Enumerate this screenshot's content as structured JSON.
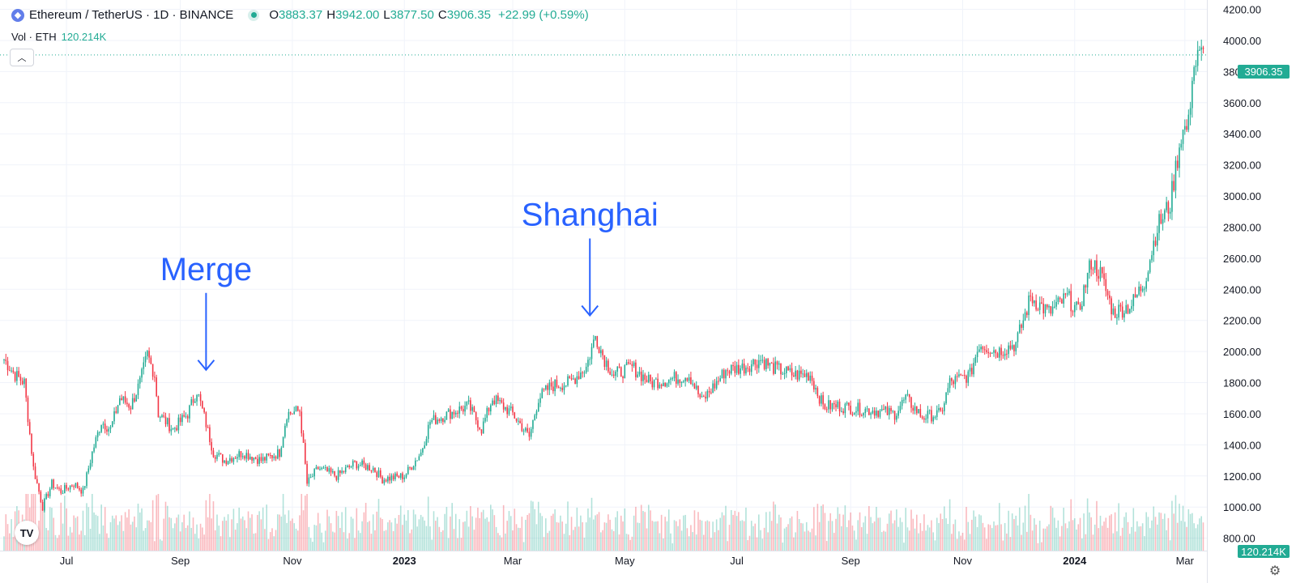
{
  "legend": {
    "symbol": "Ethereum / TetherUS · 1D · BINANCE",
    "o_label": "O",
    "o_value": "3883.37",
    "h_label": "H",
    "h_value": "3942.00",
    "l_label": "L",
    "l_value": "3877.50",
    "c_label": "C",
    "c_value": "3906.35",
    "change": "+22.99 (+0.59%)"
  },
  "volume_legend": {
    "label": "Vol · ETH",
    "value": "120.214K"
  },
  "last_price_tag": "3906.35",
  "volume_tag": "120.214K",
  "colors": {
    "up": "#22ab94",
    "down": "#f23645",
    "annotation": "#2962ff",
    "grid": "#f0f3fa"
  },
  "icons": {
    "collapse": "chevron-up-icon",
    "logo": "tradingview-logo",
    "settings": "gear-icon"
  },
  "chart_data": {
    "type": "candlestick",
    "y_axis_ticks": [
      "800.00",
      "1000.00",
      "1200.00",
      "1400.00",
      "1600.00",
      "1800.00",
      "2000.00",
      "2200.00",
      "2400.00",
      "2600.00",
      "2800.00",
      "3000.00",
      "3200.00",
      "3400.00",
      "3600.00",
      "3800.00",
      "4000.00",
      "4200.00"
    ],
    "ylim": [
      720,
      4260
    ],
    "x_axis_ticks": [
      {
        "label": "Jul",
        "date": "2022-07-01"
      },
      {
        "label": "Sep",
        "date": "2022-09-01"
      },
      {
        "label": "Nov",
        "date": "2022-11-01"
      },
      {
        "label": "2023",
        "date": "2023-01-01",
        "bold": true
      },
      {
        "label": "Mar",
        "date": "2023-03-01"
      },
      {
        "label": "May",
        "date": "2023-05-01"
      },
      {
        "label": "Jul",
        "date": "2023-07-01"
      },
      {
        "label": "Sep",
        "date": "2023-09-01"
      },
      {
        "label": "Nov",
        "date": "2023-11-01"
      },
      {
        "label": "2024",
        "date": "2024-01-01",
        "bold": true
      },
      {
        "label": "Mar",
        "date": "2024-03-01"
      }
    ],
    "xlim": [
      "2022-05-28",
      "2024-03-13"
    ],
    "price_path": [
      [
        "2022-05-28",
        1950
      ],
      [
        "2022-06-03",
        1850
      ],
      [
        "2022-06-08",
        1800
      ],
      [
        "2022-06-13",
        1250
      ],
      [
        "2022-06-18",
        1000
      ],
      [
        "2022-06-23",
        1150
      ],
      [
        "2022-06-28",
        1100
      ],
      [
        "2022-07-05",
        1150
      ],
      [
        "2022-07-10",
        1100
      ],
      [
        "2022-07-15",
        1350
      ],
      [
        "2022-07-20",
        1550
      ],
      [
        "2022-07-25",
        1500
      ],
      [
        "2022-07-30",
        1700
      ],
      [
        "2022-08-05",
        1650
      ],
      [
        "2022-08-10",
        1800
      ],
      [
        "2022-08-14",
        1980
      ],
      [
        "2022-08-18",
        1850
      ],
      [
        "2022-08-20",
        1600
      ],
      [
        "2022-08-28",
        1500
      ],
      [
        "2022-09-05",
        1600
      ],
      [
        "2022-09-10",
        1750
      ],
      [
        "2022-09-14",
        1580
      ],
      [
        "2022-09-19",
        1350
      ],
      [
        "2022-09-25",
        1300
      ],
      [
        "2022-10-05",
        1350
      ],
      [
        "2022-10-15",
        1300
      ],
      [
        "2022-10-25",
        1350
      ],
      [
        "2022-10-29",
        1600
      ],
      [
        "2022-11-05",
        1620
      ],
      [
        "2022-11-09",
        1150
      ],
      [
        "2022-11-15",
        1250
      ],
      [
        "2022-11-25",
        1200
      ],
      [
        "2022-12-05",
        1280
      ],
      [
        "2022-12-15",
        1250
      ],
      [
        "2022-12-20",
        1180
      ],
      [
        "2023-01-01",
        1200
      ],
      [
        "2023-01-10",
        1350
      ],
      [
        "2023-01-15",
        1550
      ],
      [
        "2023-01-25",
        1600
      ],
      [
        "2023-02-05",
        1650
      ],
      [
        "2023-02-12",
        1500
      ],
      [
        "2023-02-18",
        1700
      ],
      [
        "2023-03-01",
        1600
      ],
      [
        "2023-03-10",
        1450
      ],
      [
        "2023-03-15",
        1700
      ],
      [
        "2023-03-22",
        1780
      ],
      [
        "2023-04-01",
        1800
      ],
      [
        "2023-04-10",
        1900
      ],
      [
        "2023-04-15",
        2100
      ],
      [
        "2023-04-20",
        1950
      ],
      [
        "2023-04-25",
        1850
      ],
      [
        "2023-05-05",
        1900
      ],
      [
        "2023-05-15",
        1800
      ],
      [
        "2023-05-25",
        1820
      ],
      [
        "2023-06-05",
        1850
      ],
      [
        "2023-06-12",
        1680
      ],
      [
        "2023-06-20",
        1800
      ],
      [
        "2023-06-25",
        1880
      ],
      [
        "2023-07-05",
        1900
      ],
      [
        "2023-07-14",
        1950
      ],
      [
        "2023-07-20",
        1900
      ],
      [
        "2023-08-01",
        1850
      ],
      [
        "2023-08-10",
        1850
      ],
      [
        "2023-08-17",
        1650
      ],
      [
        "2023-08-25",
        1650
      ],
      [
        "2023-09-05",
        1630
      ],
      [
        "2023-09-15",
        1620
      ],
      [
        "2023-09-25",
        1600
      ],
      [
        "2023-10-01",
        1700
      ],
      [
        "2023-10-10",
        1580
      ],
      [
        "2023-10-20",
        1600
      ],
      [
        "2023-10-25",
        1800
      ],
      [
        "2023-11-05",
        1850
      ],
      [
        "2023-11-10",
        2050
      ],
      [
        "2023-11-20",
        2000
      ],
      [
        "2023-11-30",
        2050
      ],
      [
        "2023-12-08",
        2350
      ],
      [
        "2023-12-18",
        2250
      ],
      [
        "2023-12-28",
        2350
      ],
      [
        "2024-01-03",
        2250
      ],
      [
        "2024-01-10",
        2580
      ],
      [
        "2024-01-15",
        2500
      ],
      [
        "2024-01-22",
        2250
      ],
      [
        "2024-02-01",
        2300
      ],
      [
        "2024-02-08",
        2450
      ],
      [
        "2024-02-15",
        2800
      ],
      [
        "2024-02-22",
        2950
      ],
      [
        "2024-02-28",
        3400
      ],
      [
        "2024-03-03",
        3450
      ],
      [
        "2024-03-05",
        3800
      ],
      [
        "2024-03-08",
        3880
      ],
      [
        "2024-03-11",
        3906
      ]
    ],
    "annotations": [
      {
        "text": "Merge",
        "date": "2022-09-15",
        "price": 1830
      },
      {
        "text": "Shanghai",
        "date": "2023-04-12",
        "price": 2180
      }
    ]
  }
}
